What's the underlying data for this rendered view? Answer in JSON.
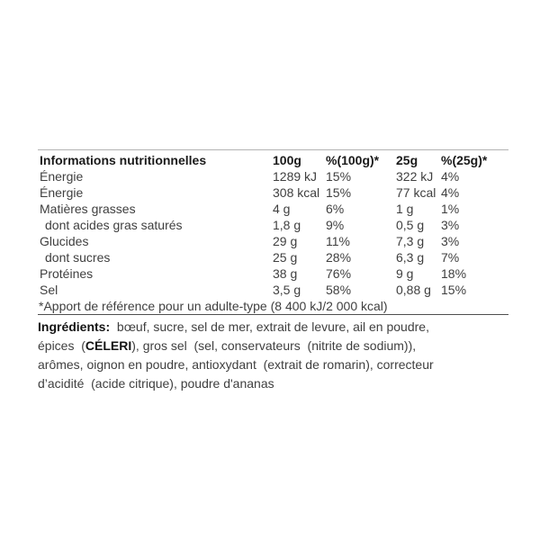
{
  "colors": {
    "page_background": "#ffffff",
    "header_text": "#1a1a1a",
    "body_text": "#3f3f3f",
    "bold_ingredient_text": "#141414",
    "table_top_border": "#b3b3b3",
    "table_bottom_border": "#4f4f4f"
  },
  "nutrition_table": {
    "header": {
      "title": "Informations nutritionnelles",
      "per_100g": "100g",
      "pct_100g": "%(100g)*",
      "per_25g": "25g",
      "pct_25g": "%(25g)*"
    },
    "rows": [
      {
        "label": "Énergie",
        "indent": false,
        "per100_value": "1289 kJ",
        "per100_pct": "15%",
        "per25_value": "322 kJ",
        "per25_pct": "4%"
      },
      {
        "label": "Énergie",
        "indent": false,
        "per100_value": "308 kcal",
        "per100_pct": "15%",
        "per25_value": "77 kcal",
        "per25_pct": "4%"
      },
      {
        "label": "Matières grasses",
        "indent": false,
        "per100_value": "4 g",
        "per100_pct": "6%",
        "per25_value": "1 g",
        "per25_pct": "1%"
      },
      {
        "label": "dont acides gras saturés",
        "indent": true,
        "per100_value": "1,8 g",
        "per100_pct": "9%",
        "per25_value": "0,5 g",
        "per25_pct": "3%"
      },
      {
        "label": "Glucides",
        "indent": false,
        "per100_value": "29 g",
        "per100_pct": "11%",
        "per25_value": "7,3 g",
        "per25_pct": "3%"
      },
      {
        "label": "dont sucres",
        "indent": true,
        "per100_value": "25 g",
        "per100_pct": "28%",
        "per25_value": "6,3 g",
        "per25_pct": "7%"
      },
      {
        "label": "Protéines",
        "indent": false,
        "per100_value": "38 g",
        "per100_pct": "76%",
        "per25_value": "9 g",
        "per25_pct": "18%"
      },
      {
        "label": "Sel",
        "indent": false,
        "per100_value": "3,5 g",
        "per100_pct": "58%",
        "per25_value": "0,88 g",
        "per25_pct": "15%"
      }
    ],
    "footnote": "*Apport de référence pour un adulte-type (8 400 kJ/2 000 kcal)"
  },
  "ingredients": {
    "lines": [
      {
        "segments": [
          {
            "text": "Ingrédients:",
            "bold": true
          },
          {
            "text": "  bœuf, sucre, sel de mer, extrait de levure, ail en poudre,",
            "bold": false
          }
        ]
      },
      {
        "segments": [
          {
            "text": "épices  (",
            "bold": false
          },
          {
            "text": "CÉLERI",
            "bold": true
          },
          {
            "text": "), gros sel  (sel, conservateurs  (nitrite de sodium)),",
            "bold": false
          }
        ]
      },
      {
        "segments": [
          {
            "text": "arômes, oignon en poudre, antioxydant  (extrait de romarin), correcteur",
            "bold": false
          }
        ]
      },
      {
        "segments": [
          {
            "text": "d’acidité  (acide citrique), poudre d'ananas",
            "bold": false
          }
        ]
      }
    ]
  }
}
